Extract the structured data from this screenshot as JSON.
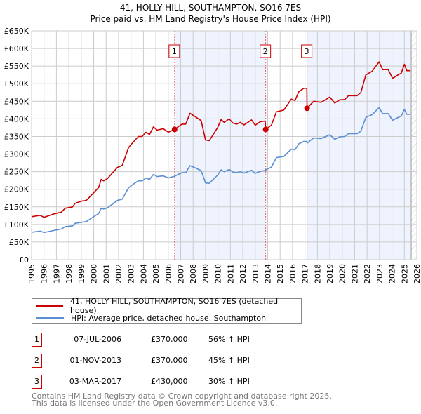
{
  "chart_data": {
    "type": "line",
    "title": "41, HOLLY HILL, SOUTHAMPTON, SO16 7ES",
    "subtitle": "Price paid vs. HM Land Registry's House Price Index (HPI)",
    "xlim": [
      1995,
      2026
    ],
    "ylim": [
      0,
      650000
    ],
    "grid": true,
    "y_ticks": [
      0,
      50000,
      100000,
      150000,
      200000,
      250000,
      300000,
      350000,
      400000,
      450000,
      500000,
      550000,
      600000,
      650000
    ],
    "y_tick_labels": [
      "£0",
      "£50K",
      "£100K",
      "£150K",
      "£200K",
      "£250K",
      "£300K",
      "£350K",
      "£400K",
      "£450K",
      "£500K",
      "£550K",
      "£600K",
      "£650K"
    ],
    "x_ticks": [
      1995,
      1996,
      1997,
      1998,
      1999,
      2000,
      2001,
      2002,
      2003,
      2004,
      2005,
      2006,
      2007,
      2008,
      2009,
      2010,
      2011,
      2012,
      2013,
      2014,
      2015,
      2016,
      2017,
      2018,
      2019,
      2020,
      2021,
      2022,
      2023,
      2024,
      2025,
      2026
    ],
    "x_tick_labels": [
      "1995",
      "1996",
      "1997",
      "1998",
      "1999",
      "2000",
      "2001",
      "2002",
      "2003",
      "2004",
      "2005",
      "2006",
      "2007",
      "2008",
      "2009",
      "2010",
      "2011",
      "2012",
      "2013",
      "2014",
      "2015",
      "2016",
      "2017",
      "2018",
      "2019",
      "2020",
      "2021",
      "2022",
      "2023",
      "2024",
      "2025",
      "2026"
    ],
    "x": [
      1995.0,
      1995.7,
      1996.0,
      1996.8,
      1997.4,
      1997.7,
      1998.3,
      1998.5,
      1999.0,
      1999.4,
      2000.0,
      2000.4,
      2000.6,
      2000.8,
      2001.1,
      2001.9,
      2002.3,
      2002.8,
      2003.2,
      2003.6,
      2003.9,
      2004.2,
      2004.5,
      2004.8,
      2005.1,
      2005.6,
      2006.0,
      2006.51,
      2007.1,
      2007.4,
      2007.75,
      2008.1,
      2008.65,
      2009.0,
      2009.3,
      2009.97,
      2010.25,
      2010.5,
      2010.9,
      2011.2,
      2011.5,
      2011.8,
      2012.1,
      2012.7,
      2013.0,
      2013.4,
      2013.8,
      2013.84,
      2014.3,
      2014.7,
      2015.3,
      2015.9,
      2016.2,
      2016.5,
      2016.9,
      2017.15,
      2017.17,
      2017.7,
      2018.3,
      2019.0,
      2019.4,
      2019.8,
      2020.2,
      2020.5,
      2021.2,
      2021.5,
      2021.9,
      2022.4,
      2022.97,
      2023.25,
      2023.7,
      2024.05,
      2024.5,
      2024.75,
      2025.0,
      2025.2,
      2025.5
    ],
    "series": [
      {
        "name": "41, HOLLY HILL, SOUTHAMPTON, SO16 7ES (detached house)",
        "color": "#cc0000",
        "values": [
          122000,
          126000,
          120000,
          130000,
          135000,
          146000,
          150000,
          160000,
          166000,
          168000,
          190000,
          205000,
          228000,
          224000,
          230000,
          262000,
          268000,
          318000,
          335000,
          350000,
          350000,
          362000,
          356000,
          377000,
          368000,
          372000,
          362000,
          370000,
          385000,
          385000,
          416000,
          408000,
          395000,
          340000,
          338000,
          375000,
          398000,
          390000,
          400000,
          388000,
          385000,
          390000,
          383000,
          397000,
          382000,
          392000,
          394000,
          370000,
          382000,
          420000,
          425000,
          456000,
          452000,
          477000,
          487000,
          487000,
          430000,
          450000,
          447000,
          462000,
          445000,
          454000,
          455000,
          466000,
          466000,
          475000,
          525000,
          535000,
          562000,
          540000,
          540000,
          515000,
          525000,
          530000,
          555000,
          537000,
          537000
        ]
      },
      {
        "name": "HPI: Average price, detached house, Southampton",
        "color": "#5b8fd4",
        "values": [
          78000,
          81000,
          77000,
          83000,
          87000,
          94000,
          96000,
          103000,
          106000,
          108000,
          122000,
          131000,
          146000,
          144000,
          147000,
          168000,
          172000,
          204000,
          215000,
          224000,
          224000,
          232000,
          228000,
          242000,
          236000,
          238000,
          232000,
          237000,
          247000,
          247000,
          267000,
          262000,
          253000,
          218000,
          217000,
          240000,
          255000,
          250000,
          256000,
          249000,
          247000,
          250000,
          246000,
          254000,
          245000,
          251000,
          253000,
          255000,
          263000,
          290000,
          293000,
          314000,
          312000,
          329000,
          336000,
          336000,
          331000,
          346000,
          344000,
          355000,
          342000,
          349000,
          350000,
          358000,
          358000,
          365000,
          404000,
          412000,
          432000,
          415000,
          415000,
          396000,
          404000,
          408000,
          427000,
          413000,
          413000
        ]
      }
    ],
    "sales": [
      {
        "label": "1",
        "x": 2006.51,
        "price": 370000
      },
      {
        "label": "2",
        "x": 2013.84,
        "price": 370000
      },
      {
        "label": "3",
        "x": 2017.17,
        "price": 430000
      }
    ],
    "forecast_start": 2025.55,
    "legend_position": "bottom"
  },
  "legend": {
    "property": "41, HOLLY HILL, SOUTHAMPTON, SO16 7ES (detached house)",
    "hpi": "HPI: Average price, detached house, Southampton"
  },
  "sales_table": [
    {
      "num": "1",
      "date": "07-JUL-2006",
      "price": "£370,000",
      "hpi": "56% ↑ HPI"
    },
    {
      "num": "2",
      "date": "01-NOV-2013",
      "price": "£370,000",
      "hpi": "45% ↑ HPI"
    },
    {
      "num": "3",
      "date": "03-MAR-2017",
      "price": "£430,000",
      "hpi": "30% ↑ HPI"
    }
  ],
  "footer": {
    "line1": "Contains HM Land Registry data © Crown copyright and database right 2025.",
    "line2": "This data is licensed under the Open Government Licence v3.0."
  },
  "colors": {
    "property": "#cc0000",
    "hpi": "#5b8fd4",
    "shade": "#eef3fd"
  }
}
